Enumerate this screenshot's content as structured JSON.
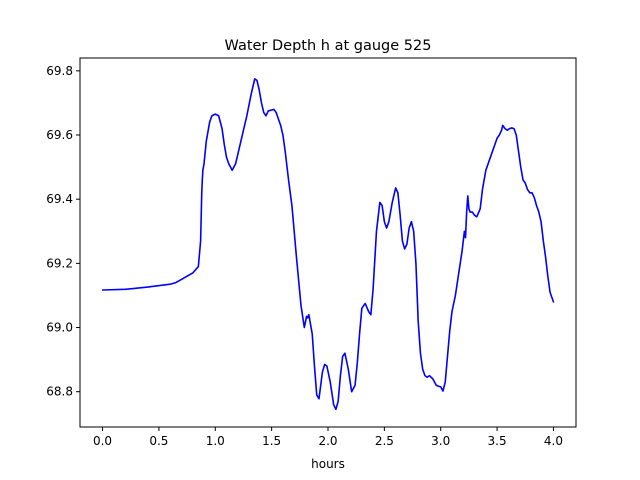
{
  "chart_data": {
    "type": "line",
    "title": "Water Depth h at gauge 525",
    "xlabel": "hours",
    "ylabel": "",
    "xlim": [
      -0.2,
      4.2
    ],
    "ylim": [
      68.69,
      69.84
    ],
    "xticks": [
      0.0,
      0.5,
      1.0,
      1.5,
      2.0,
      2.5,
      3.0,
      3.5,
      4.0
    ],
    "xtick_labels": [
      "0.0",
      "0.5",
      "1.0",
      "1.5",
      "2.0",
      "2.5",
      "3.0",
      "3.5",
      "4.0"
    ],
    "yticks": [
      68.8,
      69.0,
      69.2,
      69.4,
      69.6,
      69.8
    ],
    "ytick_labels": [
      "68.8",
      "69.0",
      "69.2",
      "69.4",
      "69.6",
      "69.8"
    ],
    "grid": false,
    "legend": "none",
    "series": [
      {
        "color": "#0000ff",
        "x": [
          0.0,
          0.2,
          0.4,
          0.6,
          0.65,
          0.7,
          0.8,
          0.85,
          0.87,
          0.88,
          0.885,
          0.89,
          0.9,
          0.92,
          0.94,
          0.95,
          0.97,
          1.0,
          1.03,
          1.06,
          1.08,
          1.1,
          1.12,
          1.15,
          1.18,
          1.2,
          1.24,
          1.28,
          1.32,
          1.35,
          1.37,
          1.39,
          1.41,
          1.43,
          1.45,
          1.47,
          1.5,
          1.52,
          1.54,
          1.56,
          1.58,
          1.6,
          1.62,
          1.65,
          1.68,
          1.72,
          1.76,
          1.79,
          1.81,
          1.82,
          1.83,
          1.84,
          1.86,
          1.88,
          1.9,
          1.92,
          1.95,
          1.97,
          1.99,
          2.02,
          2.05,
          2.07,
          2.09,
          2.11,
          2.13,
          2.15,
          2.18,
          2.21,
          2.24,
          2.26,
          2.28,
          2.3,
          2.33,
          2.36,
          2.38,
          2.4,
          2.43,
          2.46,
          2.48,
          2.5,
          2.52,
          2.54,
          2.57,
          2.6,
          2.62,
          2.64,
          2.66,
          2.68,
          2.7,
          2.72,
          2.74,
          2.76,
          2.78,
          2.8,
          2.82,
          2.84,
          2.86,
          2.88,
          2.9,
          2.93,
          2.96,
          2.98,
          3.0,
          3.02,
          3.04,
          3.06,
          3.08,
          3.1,
          3.13,
          3.16,
          3.19,
          3.21,
          3.22,
          3.23,
          3.24,
          3.245,
          3.25,
          3.26,
          3.28,
          3.3,
          3.32,
          3.35,
          3.37,
          3.4,
          3.43,
          3.46,
          3.48,
          3.5,
          3.52,
          3.54,
          3.55,
          3.57,
          3.59,
          3.61,
          3.63,
          3.65,
          3.67,
          3.69,
          3.71,
          3.73,
          3.75,
          3.77,
          3.79,
          3.81,
          3.83,
          3.85,
          3.87,
          3.89,
          3.91,
          3.93,
          3.95,
          3.97,
          4.0
        ],
        "y": [
          69.117,
          69.119,
          69.126,
          69.135,
          69.14,
          69.15,
          69.17,
          69.19,
          69.27,
          69.42,
          69.46,
          69.49,
          69.51,
          69.58,
          69.62,
          69.64,
          69.66,
          69.665,
          69.66,
          69.62,
          69.57,
          69.53,
          69.51,
          69.49,
          69.51,
          69.54,
          69.6,
          69.66,
          69.73,
          69.775,
          69.77,
          69.74,
          69.7,
          69.67,
          69.66,
          69.675,
          69.678,
          69.68,
          69.67,
          69.65,
          69.63,
          69.6,
          69.55,
          69.46,
          69.38,
          69.22,
          69.07,
          69.0,
          69.035,
          69.03,
          69.04,
          69.02,
          68.98,
          68.88,
          68.79,
          68.778,
          68.86,
          68.885,
          68.88,
          68.83,
          68.76,
          68.745,
          68.77,
          68.85,
          68.91,
          68.92,
          68.87,
          68.8,
          68.82,
          68.89,
          68.98,
          69.06,
          69.075,
          69.05,
          69.04,
          69.12,
          69.3,
          69.39,
          69.38,
          69.33,
          69.31,
          69.33,
          69.39,
          69.435,
          69.42,
          69.35,
          69.27,
          69.245,
          69.26,
          69.31,
          69.33,
          69.3,
          69.2,
          69.02,
          68.92,
          68.87,
          68.85,
          68.845,
          68.85,
          68.84,
          68.82,
          68.817,
          68.815,
          68.802,
          68.83,
          68.91,
          68.99,
          69.05,
          69.1,
          69.17,
          69.24,
          69.3,
          69.28,
          69.36,
          69.41,
          69.39,
          69.37,
          69.36,
          69.36,
          69.35,
          69.345,
          69.37,
          69.43,
          69.49,
          69.52,
          69.55,
          69.57,
          69.59,
          69.6,
          69.615,
          69.63,
          69.62,
          69.615,
          69.62,
          69.622,
          69.62,
          69.6,
          69.55,
          69.5,
          69.46,
          69.45,
          69.43,
          69.42,
          69.42,
          69.405,
          69.38,
          69.36,
          69.33,
          69.27,
          69.22,
          69.16,
          69.11,
          69.08
        ]
      }
    ]
  }
}
